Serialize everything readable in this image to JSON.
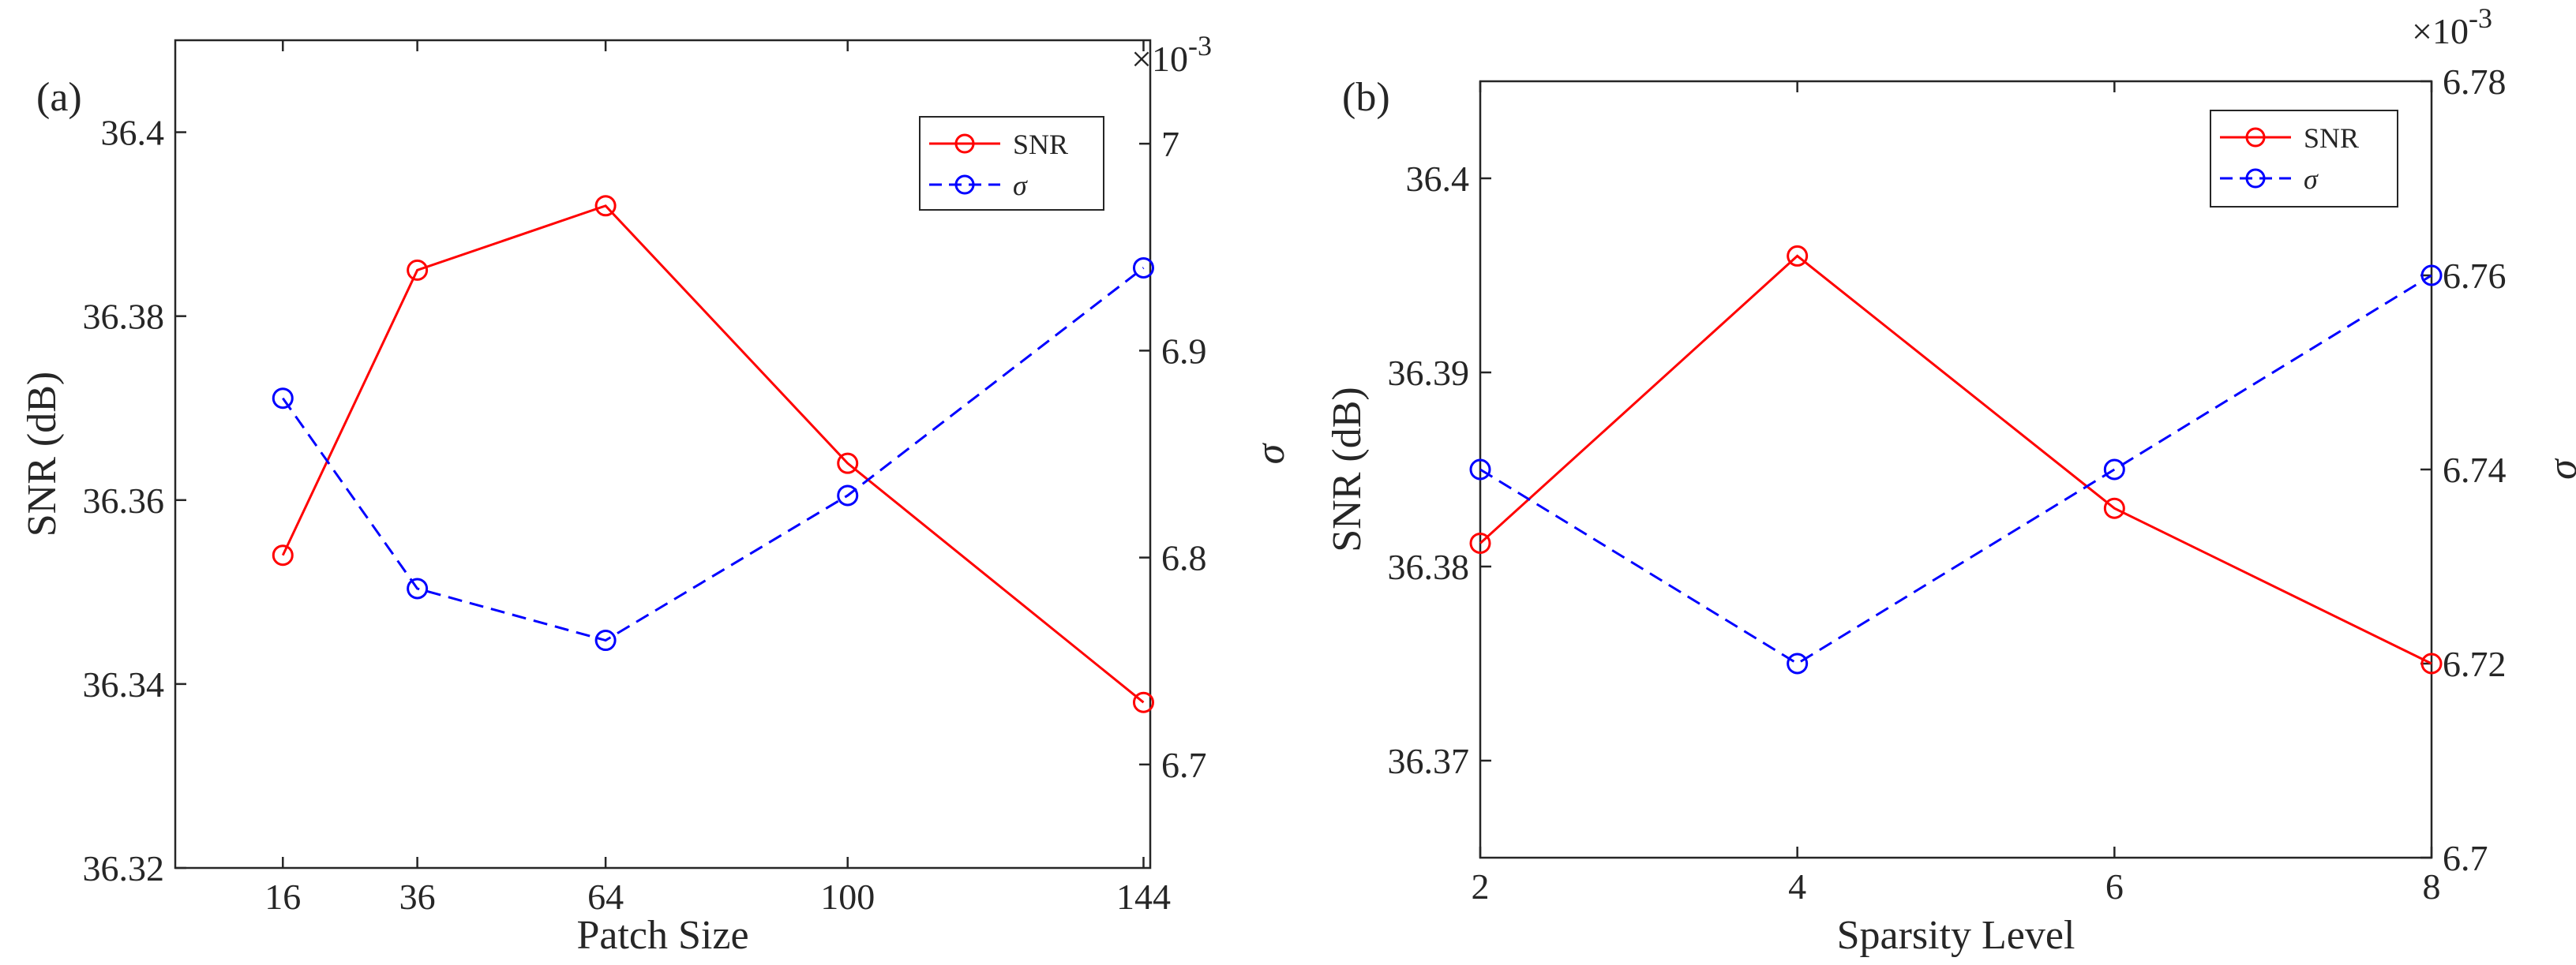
{
  "chart_data": [
    {
      "type": "line",
      "panel_label": "(a)",
      "xlabel": "Patch Size",
      "ylabel_left": "SNR (dB)",
      "ylabel_right": "σ",
      "right_axis_multiplier": "×10",
      "right_axis_exponent": "-3",
      "x": [
        16,
        36,
        64,
        100,
        144
      ],
      "x_ticks": [
        "16",
        "36",
        "64",
        "100",
        "144"
      ],
      "xlim": [
        0,
        145
      ],
      "ylim_left": [
        36.32,
        36.41
      ],
      "yticks_left": [
        36.32,
        36.34,
        36.36,
        36.38,
        36.4
      ],
      "yticks_left_labels": [
        "36.32",
        "36.34",
        "36.36",
        "36.38",
        "36.4"
      ],
      "ylim_right": [
        6.65,
        7.05
      ],
      "yticks_right": [
        6.7,
        6.8,
        6.9,
        7.0
      ],
      "yticks_right_labels": [
        "6.7",
        "6.8",
        "6.9",
        "7"
      ],
      "series": [
        {
          "name": "SNR",
          "axis": "left",
          "color": "#ff0000",
          "dash": "solid",
          "marker": "circle",
          "values": [
            36.354,
            36.385,
            36.392,
            36.364,
            36.338
          ]
        },
        {
          "name": "σ",
          "axis": "right",
          "color": "#0000ff",
          "dash": "dashed",
          "marker": "circle",
          "values": [
            6.877,
            6.785,
            6.76,
            6.83,
            6.94
          ]
        }
      ],
      "legend": {
        "position": "top-right",
        "entries": [
          "SNR",
          "σ"
        ]
      }
    },
    {
      "type": "line",
      "panel_label": "(b)",
      "xlabel": "Sparsity Level",
      "ylabel_left": "SNR (dB)",
      "ylabel_right": "σ",
      "right_axis_multiplier": "×10",
      "right_axis_exponent": "-3",
      "x": [
        2,
        4,
        6,
        8
      ],
      "x_ticks": [
        "2",
        "4",
        "6",
        "8"
      ],
      "xlim": [
        2,
        8
      ],
      "ylim_left": [
        36.365,
        36.405
      ],
      "yticks_left": [
        36.37,
        36.38,
        36.39,
        36.4
      ],
      "yticks_left_labels": [
        "36.37",
        "36.38",
        "36.39",
        "36.4"
      ],
      "ylim_right": [
        6.7,
        6.78
      ],
      "yticks_right": [
        6.7,
        6.72,
        6.74,
        6.76,
        6.78
      ],
      "yticks_right_labels": [
        "6.7",
        "6.72",
        "6.74",
        "6.76",
        "6.78"
      ],
      "series": [
        {
          "name": "SNR",
          "axis": "left",
          "color": "#ff0000",
          "dash": "solid",
          "marker": "circle",
          "values": [
            36.3812,
            36.396,
            36.383,
            36.375
          ]
        },
        {
          "name": "σ",
          "axis": "right",
          "color": "#0000ff",
          "dash": "dashed",
          "marker": "circle",
          "values": [
            6.74,
            6.72,
            6.74,
            6.76
          ]
        }
      ],
      "legend": {
        "position": "top-right",
        "entries": [
          "SNR",
          "σ"
        ]
      }
    }
  ]
}
